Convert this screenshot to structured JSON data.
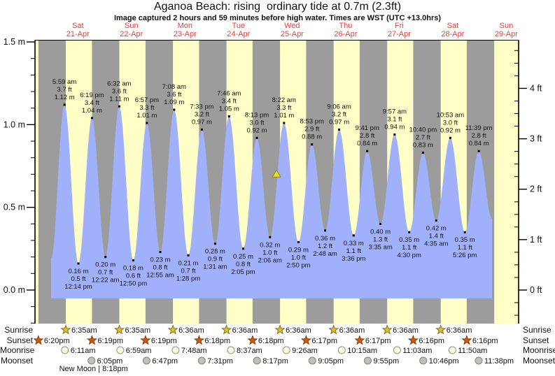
{
  "title": "Aganoa Beach: rising  ordinary tide at 0.7m (2.3ft)",
  "subtitle": "Image captured 2 hours and 59 minutes before high water. Times are WST (UTC +13.0hrs)",
  "colors": {
    "day_band": "#ffffc8",
    "night_band": "#9c9c9c",
    "tide_fill": "#a0b0fa",
    "day_label_red": "#f23b3b",
    "axis_black": "#000000",
    "marker_yellow": "#ecd92a",
    "sunrise_star": "#d8c431",
    "sunset_star": "#cc5c10",
    "moonrise_circle": "#ffffd8",
    "moonset_circle": "#c0c0b4"
  },
  "chart_data": {
    "type": "area",
    "title": "Aganoa Beach tide height over time",
    "ylabel_left": "m",
    "ylabel_right": "ft",
    "ylim_m": [
      -0.2,
      1.5
    ],
    "grid": false,
    "days": [
      {
        "name": "Sat",
        "date": "21-Apr"
      },
      {
        "name": "Sun",
        "date": "22-Apr"
      },
      {
        "name": "Mon",
        "date": "23-Apr"
      },
      {
        "name": "Tue",
        "date": "24-Apr"
      },
      {
        "name": "Wed",
        "date": "25-Apr"
      },
      {
        "name": "Thu",
        "date": "26-Apr"
      },
      {
        "name": "Fri",
        "date": "27-Apr"
      },
      {
        "name": "Sat",
        "date": "28-Apr"
      },
      {
        "name": "Sun",
        "date": "29-Apr"
      }
    ],
    "y_axis_left_ticks": [
      "0.0 m",
      "0.5 m",
      "1.0 m",
      "1.5 m"
    ],
    "y_axis_right_ticks": [
      "0 ft",
      "1 ft",
      "2 ft",
      "3 ft",
      "4 ft"
    ],
    "extremes": [
      {
        "type": "H",
        "day": 0,
        "time": "5:59 am",
        "ft": "3.7",
        "m": 1.12
      },
      {
        "type": "L",
        "day": 0,
        "time": "12:14 pm",
        "ft": "0.5",
        "m": 0.16
      },
      {
        "type": "H",
        "day": 0,
        "time": "6:19 pm",
        "ft": "3.4",
        "m": 1.04
      },
      {
        "type": "L",
        "day": 1,
        "time": "12:22 am",
        "ft": "0.7",
        "m": 0.2
      },
      {
        "type": "H",
        "day": 1,
        "time": "6:32 am",
        "ft": "3.6",
        "m": 1.11
      },
      {
        "type": "L",
        "day": 1,
        "time": "12:50 pm",
        "ft": "0.6",
        "m": 0.18
      },
      {
        "type": "H",
        "day": 1,
        "time": "6:57 pm",
        "ft": "3.3",
        "m": 1.01
      },
      {
        "type": "L",
        "day": 2,
        "time": "12:55 am",
        "ft": "0.8",
        "m": 0.23
      },
      {
        "type": "H",
        "day": 2,
        "time": "7:08 am",
        "ft": "3.6",
        "m": 1.09
      },
      {
        "type": "L",
        "day": 2,
        "time": "1:28 pm",
        "ft": "0.7",
        "m": 0.21
      },
      {
        "type": "H",
        "day": 2,
        "time": "7:33 pm",
        "ft": "3.2",
        "m": 0.97
      },
      {
        "type": "L",
        "day": 3,
        "time": "1:31 am",
        "ft": "0.9",
        "m": 0.28
      },
      {
        "type": "H",
        "day": 3,
        "time": "7:46 am",
        "ft": "3.4",
        "m": 1.05
      },
      {
        "type": "L",
        "day": 3,
        "time": "2:05 pm",
        "ft": "0.8",
        "m": 0.25
      },
      {
        "type": "H",
        "day": 3,
        "time": "8:13 pm",
        "ft": "3.0",
        "m": 0.92
      },
      {
        "type": "L",
        "day": 4,
        "time": "2:06 am",
        "ft": "1.0",
        "m": 0.32
      },
      {
        "type": "H",
        "day": 4,
        "time": "8:22 am",
        "ft": "3.3",
        "m": 1.01
      },
      {
        "type": "L",
        "day": 4,
        "time": "2:50 pm",
        "ft": "1.0",
        "m": 0.29
      },
      {
        "type": "H",
        "day": 4,
        "time": "8:53 pm",
        "ft": "2.9",
        "m": 0.88
      },
      {
        "type": "L",
        "day": 5,
        "time": "2:48 am",
        "ft": "1.2",
        "m": 0.36
      },
      {
        "type": "H",
        "day": 5,
        "time": "9:06 am",
        "ft": "3.2",
        "m": 0.97
      },
      {
        "type": "L",
        "day": 5,
        "time": "3:36 pm",
        "ft": "1.1",
        "m": 0.33
      },
      {
        "type": "H",
        "day": 5,
        "time": "9:41 pm",
        "ft": "2.8",
        "m": 0.84
      },
      {
        "type": "L",
        "day": 6,
        "time": "3:35 am",
        "ft": "1.3",
        "m": 0.4
      },
      {
        "type": "H",
        "day": 6,
        "time": "9:57 am",
        "ft": "3.1",
        "m": 0.94
      },
      {
        "type": "L",
        "day": 6,
        "time": "4:30 pm",
        "ft": "1.1",
        "m": 0.35
      },
      {
        "type": "H",
        "day": 6,
        "time": "10:40 pm",
        "ft": "2.7",
        "m": 0.83
      },
      {
        "type": "L",
        "day": 7,
        "time": "4:35 am",
        "ft": "1.4",
        "m": 0.42
      },
      {
        "type": "H",
        "day": 7,
        "time": "10:53 am",
        "ft": "3.0",
        "m": 0.92
      },
      {
        "type": "L",
        "day": 7,
        "time": "5:26 pm",
        "ft": "1.1",
        "m": 0.35
      },
      {
        "type": "H",
        "day": 7,
        "time": "11:39 pm",
        "ft": "2.8",
        "m": 0.84
      }
    ],
    "curve_endpoints": {
      "start": {
        "day": 0,
        "hour": 0.0,
        "m": 0.19
      },
      "end": {
        "day": 8,
        "hour": 5.6,
        "m": 0.43
      }
    },
    "current_tide_marker": {
      "day": 4,
      "hour": 5.0,
      "m": 0.7
    }
  },
  "almanac": {
    "sunrise": {
      "label": "Sunrise",
      "entries": [
        {
          "day": 0,
          "time": "6:35am"
        },
        {
          "day": 1,
          "time": "6:35am"
        },
        {
          "day": 2,
          "time": "6:36am"
        },
        {
          "day": 3,
          "time": "6:36am"
        },
        {
          "day": 4,
          "time": "6:36am"
        },
        {
          "day": 5,
          "time": "6:36am"
        },
        {
          "day": 6,
          "time": "6:36am"
        },
        {
          "day": 7,
          "time": "6:36am"
        }
      ]
    },
    "sunset": {
      "label": "Sunset",
      "entries": [
        {
          "day": -1,
          "time": "6:20pm"
        },
        {
          "day": 0,
          "time": "6:19pm"
        },
        {
          "day": 1,
          "time": "6:19pm"
        },
        {
          "day": 2,
          "time": "6:18pm"
        },
        {
          "day": 3,
          "time": "6:18pm"
        },
        {
          "day": 4,
          "time": "6:17pm"
        },
        {
          "day": 5,
          "time": "6:17pm"
        },
        {
          "day": 6,
          "time": "6:16pm"
        },
        {
          "day": 7,
          "time": "6:16pm"
        }
      ]
    },
    "moonrise": {
      "label": "Moonrise",
      "entries": [
        {
          "day": 0,
          "time": "6:11am"
        },
        {
          "day": 1,
          "time": "6:59am"
        },
        {
          "day": 2,
          "time": "7:48am"
        },
        {
          "day": 3,
          "time": "8:37am"
        },
        {
          "day": 4,
          "time": "9:26am"
        },
        {
          "day": 5,
          "time": "10:15am"
        },
        {
          "day": 6,
          "time": "11:03am"
        },
        {
          "day": 7,
          "time": "11:50am"
        }
      ]
    },
    "moonset": {
      "label": "Moonset",
      "entries": [
        {
          "day": 0,
          "time": "6:05pm"
        },
        {
          "day": 1,
          "time": "6:47pm"
        },
        {
          "day": 2,
          "time": "7:31pm"
        },
        {
          "day": 3,
          "time": "8:17pm"
        },
        {
          "day": 4,
          "time": "9:05pm"
        },
        {
          "day": 5,
          "time": "9:55pm"
        },
        {
          "day": 6,
          "time": "10:46pm"
        },
        {
          "day": 7,
          "time": "11:38pm"
        }
      ]
    },
    "new_moon": {
      "label": "New Moon | 8:18pm",
      "day": 0,
      "hour": 20.3
    }
  }
}
